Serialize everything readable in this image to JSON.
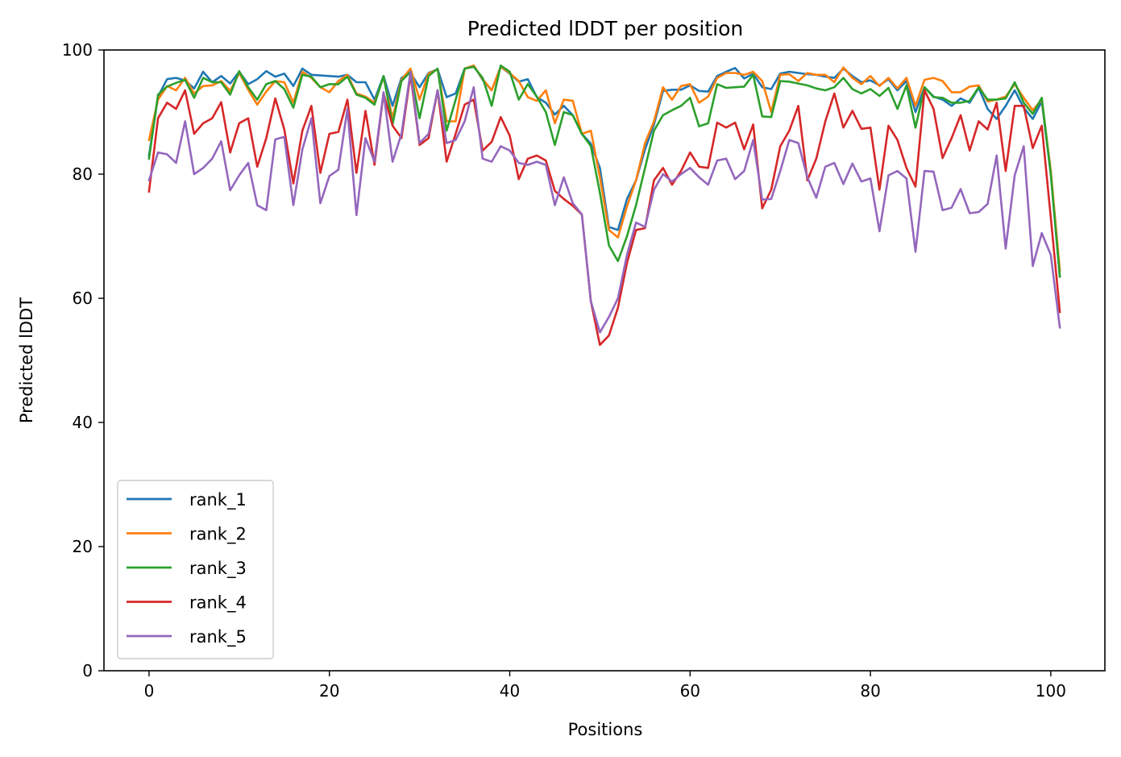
{
  "chart_data": {
    "type": "line",
    "title": "Predicted lDDT per position",
    "xlabel": "Positions",
    "ylabel": "Predicted lDDT",
    "xlim": [
      -5,
      106
    ],
    "ylim": [
      0,
      100
    ],
    "xticks": [
      0,
      20,
      40,
      60,
      80,
      100
    ],
    "yticks": [
      0,
      20,
      40,
      60,
      80,
      100
    ],
    "grid": false,
    "legend_position": "lower-left",
    "x": [
      0,
      1,
      2,
      3,
      4,
      5,
      6,
      7,
      8,
      9,
      10,
      11,
      12,
      13,
      14,
      15,
      16,
      17,
      18,
      19,
      20,
      21,
      22,
      23,
      24,
      25,
      26,
      27,
      28,
      29,
      30,
      31,
      32,
      33,
      34,
      35,
      36,
      37,
      38,
      39,
      40,
      41,
      42,
      43,
      44,
      45,
      46,
      47,
      48,
      49,
      50,
      51,
      52,
      53,
      54,
      55,
      56,
      57,
      58,
      59,
      60,
      61,
      62,
      63,
      64,
      65,
      66,
      67,
      68,
      69,
      70,
      71,
      72,
      73,
      74,
      75,
      76,
      77,
      78,
      79,
      80,
      81,
      82,
      83,
      84,
      85,
      86,
      87,
      88,
      89,
      90,
      91,
      92,
      93,
      94,
      95,
      96,
      97,
      98,
      99,
      100,
      101
    ],
    "series": [
      {
        "name": "rank_1",
        "color": "#1f77b4",
        "values": [
          83,
          92.5,
          95.3,
          95.5,
          95.1,
          93.8,
          96.5,
          94.8,
          95.8,
          94.6,
          96.5,
          94.5,
          95.3,
          96.6,
          95.7,
          96.2,
          94.2,
          97,
          96,
          95.9,
          95.8,
          95.7,
          96,
          94.8,
          94.8,
          92,
          95.8,
          91,
          95.5,
          96.3,
          94,
          96.3,
          96.9,
          92.4,
          93,
          97,
          97.5,
          95.2,
          93.5,
          97.3,
          96.2,
          94.9,
          95.3,
          92.4,
          91.5,
          89.6,
          91,
          89.5,
          86.5,
          84.9,
          81,
          71.5,
          71,
          76,
          79,
          84,
          88,
          93.4,
          93.6,
          93.6,
          94.3,
          93.4,
          93.3,
          95.8,
          96.5,
          97.1,
          95.4,
          96.2,
          94,
          93.7,
          96.2,
          96.5,
          96.3,
          96.1,
          96,
          95.7,
          95.5,
          97,
          95.8,
          94.8,
          95.1,
          94.3,
          95.3,
          93.5,
          95,
          90,
          94,
          92.5,
          92,
          91,
          92.2,
          91.5,
          93.9,
          90.5,
          88.9,
          91,
          93.5,
          90.7,
          88.9,
          91.7,
          80,
          63.5
        ]
      },
      {
        "name": "rank_2",
        "color": "#ff7f0e",
        "values": [
          85.5,
          92,
          94.2,
          93.5,
          95.5,
          93,
          94.2,
          94.3,
          95,
          93.4,
          96.3,
          93.6,
          91.2,
          93.3,
          95,
          94.8,
          91.5,
          96.5,
          95.5,
          94,
          93.2,
          95,
          96,
          93,
          92.5,
          91.5,
          95.6,
          89,
          95.2,
          97,
          92,
          96.2,
          96.9,
          88.5,
          88.5,
          97,
          97.5,
          95.3,
          93.5,
          97.3,
          96.3,
          95,
          92.4,
          91.8,
          93.5,
          88.2,
          92,
          91.8,
          86.5,
          87,
          79.5,
          71,
          69.8,
          74.8,
          79,
          85,
          88.5,
          94,
          92,
          94.2,
          94.5,
          91.5,
          92.5,
          95.5,
          96.3,
          96.3,
          96,
          96.5,
          95,
          90,
          96,
          96.1,
          95,
          96.3,
          96,
          96,
          94.8,
          97.2,
          95.5,
          94.5,
          95.8,
          94.2,
          95.5,
          93.8,
          95.5,
          91,
          95.2,
          95.5,
          95,
          93.2,
          93.2,
          94.1,
          94.3,
          91.7,
          92,
          92.5,
          94.5,
          92.3,
          90.3,
          92,
          80.5,
          64.5
        ]
      },
      {
        "name": "rank_3",
        "color": "#2ca02c",
        "values": [
          82.5,
          92.8,
          94.1,
          94.7,
          95.2,
          92.3,
          95.5,
          94.8,
          94.8,
          92.8,
          96.6,
          94,
          92,
          94.5,
          95,
          93.7,
          90.7,
          96,
          95.7,
          94,
          94.5,
          94.5,
          95.7,
          92.8,
          92.3,
          91.2,
          95.8,
          88,
          95,
          96.5,
          89,
          95.8,
          97,
          87,
          92,
          97,
          97.3,
          95.5,
          91,
          97.5,
          96.5,
          92,
          94.5,
          92.5,
          90,
          84.7,
          90,
          89.5,
          86.5,
          84.5,
          77,
          68.5,
          66,
          70,
          75,
          81,
          87,
          89.5,
          90.3,
          91,
          92.3,
          87.7,
          88.2,
          94.5,
          93.9,
          94,
          94.1,
          96,
          89.3,
          89.2,
          95,
          94.9,
          94.6,
          94.3,
          93.8,
          93.5,
          94,
          95.5,
          93.7,
          93,
          93.7,
          92.6,
          93.9,
          90.5,
          94.3,
          87.5,
          94,
          92.4,
          92.3,
          91.5,
          91.5,
          91.8,
          94,
          92,
          92,
          92.2,
          94.8,
          91.5,
          89.7,
          92.3,
          80,
          63.5
        ]
      },
      {
        "name": "rank_4",
        "color": "#d62728",
        "values": [
          77.2,
          89,
          91.5,
          90.5,
          93.5,
          86.5,
          88.2,
          89,
          91.6,
          83.5,
          88.2,
          89,
          81.2,
          85.8,
          92.2,
          87.2,
          78.5,
          87,
          91,
          80.2,
          86.5,
          86.8,
          92,
          80.2,
          90.2,
          81.5,
          93,
          87.8,
          85.8,
          96,
          84.7,
          85.8,
          93.5,
          82,
          86.5,
          91.2,
          92,
          83.8,
          85.2,
          89.2,
          86.2,
          79.2,
          82.5,
          83,
          82.2,
          77.3,
          76,
          74.9,
          73.5,
          59.5,
          52.5,
          54,
          58.5,
          65.7,
          71,
          71.3,
          79,
          81,
          78.3,
          80.5,
          83.5,
          81.2,
          81,
          88.3,
          87.5,
          88.3,
          84,
          88,
          74.5,
          77.5,
          84.5,
          87,
          91,
          79,
          82.5,
          88.5,
          93,
          87.5,
          90.2,
          87.3,
          87.5,
          77.5,
          87.8,
          85.5,
          81,
          78,
          93.5,
          90.5,
          82.6,
          85.8,
          89.5,
          83.8,
          88.5,
          87.2,
          91.5,
          80.5,
          91,
          91,
          84.2,
          87.8,
          73,
          57.8
        ]
      },
      {
        "name": "rank_5",
        "color": "#9467bd",
        "values": [
          79,
          83.5,
          83.2,
          81.8,
          88.5,
          80,
          81,
          82.5,
          85.3,
          77.4,
          79.8,
          81.8,
          75,
          74.2,
          85.6,
          86,
          75,
          84,
          89,
          75.3,
          79.7,
          80.7,
          90.5,
          73.4,
          85.8,
          82,
          93.2,
          82,
          86.5,
          96.5,
          85,
          86.5,
          93.5,
          85,
          85.5,
          88.5,
          94,
          82.5,
          82,
          84.5,
          83.8,
          81.8,
          81.5,
          82,
          81.5,
          75,
          79.5,
          75.3,
          73.5,
          59.5,
          54.5,
          57,
          60,
          67,
          72.2,
          71.5,
          77.5,
          80,
          78.8,
          80,
          81,
          79.5,
          78.3,
          82.2,
          82.5,
          79.2,
          80.5,
          85.5,
          75.9,
          76,
          80.5,
          85.5,
          85,
          79.5,
          76.2,
          81.2,
          81.8,
          78.4,
          81.7,
          78.8,
          79.3,
          70.8,
          79.8,
          80.5,
          79.3,
          67.5,
          80.5,
          80.4,
          74.2,
          74.6,
          77.6,
          73.7,
          73.9,
          75.2,
          83,
          68,
          79.8,
          84.5,
          65.2,
          70.5,
          67,
          55.3
        ]
      }
    ]
  }
}
